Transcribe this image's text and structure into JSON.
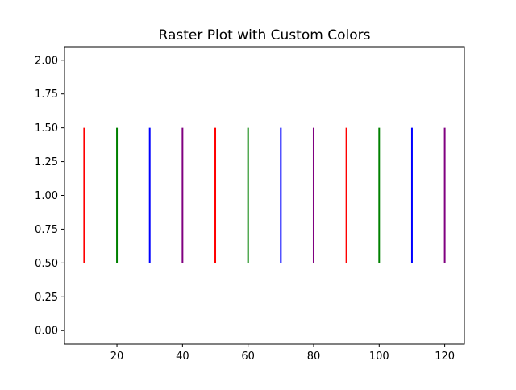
{
  "chart_data": {
    "type": "raster",
    "title": "Raster Plot with Custom Colors",
    "xlabel": "",
    "ylabel": "",
    "xlim": [
      4,
      126
    ],
    "ylim": [
      -0.1,
      2.1
    ],
    "x_ticks": [
      20,
      40,
      60,
      80,
      100,
      120
    ],
    "y_ticks": [
      0.0,
      0.25,
      0.5,
      0.75,
      1.0,
      1.25,
      1.5,
      1.75,
      2.0
    ],
    "x_tick_labels": [
      "20",
      "40",
      "60",
      "80",
      "100",
      "120"
    ],
    "y_tick_labels": [
      "0.00",
      "0.25",
      "0.50",
      "0.75",
      "1.00",
      "1.25",
      "1.50",
      "1.75",
      "2.00"
    ],
    "events": [
      {
        "x": 10,
        "y0": 0.5,
        "y1": 1.5,
        "color": "#ff0000"
      },
      {
        "x": 20,
        "y0": 0.5,
        "y1": 1.5,
        "color": "#008000"
      },
      {
        "x": 30,
        "y0": 0.5,
        "y1": 1.5,
        "color": "#0000ff"
      },
      {
        "x": 40,
        "y0": 0.5,
        "y1": 1.5,
        "color": "#800080"
      },
      {
        "x": 50,
        "y0": 0.5,
        "y1": 1.5,
        "color": "#ff0000"
      },
      {
        "x": 60,
        "y0": 0.5,
        "y1": 1.5,
        "color": "#008000"
      },
      {
        "x": 70,
        "y0": 0.5,
        "y1": 1.5,
        "color": "#0000ff"
      },
      {
        "x": 80,
        "y0": 0.5,
        "y1": 1.5,
        "color": "#800080"
      },
      {
        "x": 90,
        "y0": 0.5,
        "y1": 1.5,
        "color": "#ff0000"
      },
      {
        "x": 100,
        "y0": 0.5,
        "y1": 1.5,
        "color": "#008000"
      },
      {
        "x": 110,
        "y0": 0.5,
        "y1": 1.5,
        "color": "#0000ff"
      },
      {
        "x": 120,
        "y0": 0.5,
        "y1": 1.5,
        "color": "#800080"
      }
    ],
    "grid": false,
    "legend": "none"
  }
}
